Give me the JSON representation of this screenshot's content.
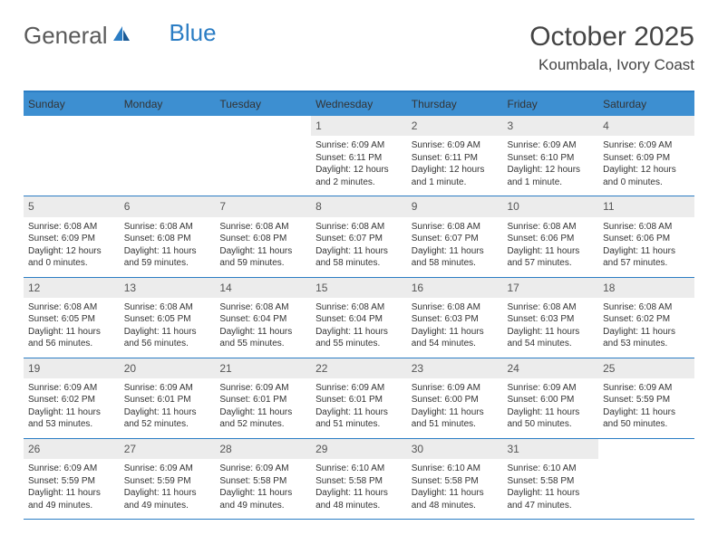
{
  "brand": {
    "part1": "General",
    "part2": "Blue"
  },
  "title": {
    "month": "October 2025",
    "location": "Koumbala, Ivory Coast"
  },
  "colors": {
    "header_bg": "#3d8fd1",
    "border": "#2b7dc4",
    "daynum_bg": "#ececec",
    "text": "#333333"
  },
  "day_headers": [
    "Sunday",
    "Monday",
    "Tuesday",
    "Wednesday",
    "Thursday",
    "Friday",
    "Saturday"
  ],
  "weeks": [
    [
      null,
      null,
      null,
      {
        "d": "1",
        "sr": "6:09 AM",
        "ss": "6:11 PM",
        "dl": "12 hours and 2 minutes."
      },
      {
        "d": "2",
        "sr": "6:09 AM",
        "ss": "6:11 PM",
        "dl": "12 hours and 1 minute."
      },
      {
        "d": "3",
        "sr": "6:09 AM",
        "ss": "6:10 PM",
        "dl": "12 hours and 1 minute."
      },
      {
        "d": "4",
        "sr": "6:09 AM",
        "ss": "6:09 PM",
        "dl": "12 hours and 0 minutes."
      }
    ],
    [
      {
        "d": "5",
        "sr": "6:08 AM",
        "ss": "6:09 PM",
        "dl": "12 hours and 0 minutes."
      },
      {
        "d": "6",
        "sr": "6:08 AM",
        "ss": "6:08 PM",
        "dl": "11 hours and 59 minutes."
      },
      {
        "d": "7",
        "sr": "6:08 AM",
        "ss": "6:08 PM",
        "dl": "11 hours and 59 minutes."
      },
      {
        "d": "8",
        "sr": "6:08 AM",
        "ss": "6:07 PM",
        "dl": "11 hours and 58 minutes."
      },
      {
        "d": "9",
        "sr": "6:08 AM",
        "ss": "6:07 PM",
        "dl": "11 hours and 58 minutes."
      },
      {
        "d": "10",
        "sr": "6:08 AM",
        "ss": "6:06 PM",
        "dl": "11 hours and 57 minutes."
      },
      {
        "d": "11",
        "sr": "6:08 AM",
        "ss": "6:06 PM",
        "dl": "11 hours and 57 minutes."
      }
    ],
    [
      {
        "d": "12",
        "sr": "6:08 AM",
        "ss": "6:05 PM",
        "dl": "11 hours and 56 minutes."
      },
      {
        "d": "13",
        "sr": "6:08 AM",
        "ss": "6:05 PM",
        "dl": "11 hours and 56 minutes."
      },
      {
        "d": "14",
        "sr": "6:08 AM",
        "ss": "6:04 PM",
        "dl": "11 hours and 55 minutes."
      },
      {
        "d": "15",
        "sr": "6:08 AM",
        "ss": "6:04 PM",
        "dl": "11 hours and 55 minutes."
      },
      {
        "d": "16",
        "sr": "6:08 AM",
        "ss": "6:03 PM",
        "dl": "11 hours and 54 minutes."
      },
      {
        "d": "17",
        "sr": "6:08 AM",
        "ss": "6:03 PM",
        "dl": "11 hours and 54 minutes."
      },
      {
        "d": "18",
        "sr": "6:08 AM",
        "ss": "6:02 PM",
        "dl": "11 hours and 53 minutes."
      }
    ],
    [
      {
        "d": "19",
        "sr": "6:09 AM",
        "ss": "6:02 PM",
        "dl": "11 hours and 53 minutes."
      },
      {
        "d": "20",
        "sr": "6:09 AM",
        "ss": "6:01 PM",
        "dl": "11 hours and 52 minutes."
      },
      {
        "d": "21",
        "sr": "6:09 AM",
        "ss": "6:01 PM",
        "dl": "11 hours and 52 minutes."
      },
      {
        "d": "22",
        "sr": "6:09 AM",
        "ss": "6:01 PM",
        "dl": "11 hours and 51 minutes."
      },
      {
        "d": "23",
        "sr": "6:09 AM",
        "ss": "6:00 PM",
        "dl": "11 hours and 51 minutes."
      },
      {
        "d": "24",
        "sr": "6:09 AM",
        "ss": "6:00 PM",
        "dl": "11 hours and 50 minutes."
      },
      {
        "d": "25",
        "sr": "6:09 AM",
        "ss": "5:59 PM",
        "dl": "11 hours and 50 minutes."
      }
    ],
    [
      {
        "d": "26",
        "sr": "6:09 AM",
        "ss": "5:59 PM",
        "dl": "11 hours and 49 minutes."
      },
      {
        "d": "27",
        "sr": "6:09 AM",
        "ss": "5:59 PM",
        "dl": "11 hours and 49 minutes."
      },
      {
        "d": "28",
        "sr": "6:09 AM",
        "ss": "5:58 PM",
        "dl": "11 hours and 49 minutes."
      },
      {
        "d": "29",
        "sr": "6:10 AM",
        "ss": "5:58 PM",
        "dl": "11 hours and 48 minutes."
      },
      {
        "d": "30",
        "sr": "6:10 AM",
        "ss": "5:58 PM",
        "dl": "11 hours and 48 minutes."
      },
      {
        "d": "31",
        "sr": "6:10 AM",
        "ss": "5:58 PM",
        "dl": "11 hours and 47 minutes."
      },
      null
    ]
  ],
  "labels": {
    "sunrise": "Sunrise: ",
    "sunset": "Sunset: ",
    "daylight": "Daylight: "
  }
}
